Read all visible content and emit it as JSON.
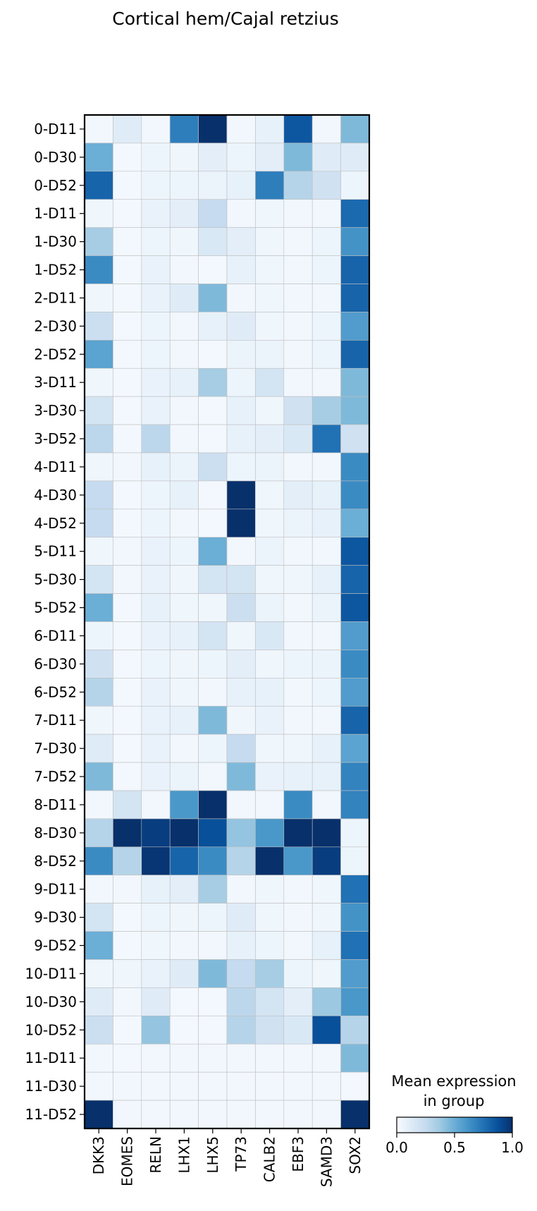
{
  "chart_data": {
    "type": "heatmap",
    "title": "Cortical hem/Cajal retzius",
    "columns": [
      "DKK3",
      "EOMES",
      "RELN",
      "LHX1",
      "LHX5",
      "TP73",
      "CALB2",
      "EBF3",
      "SAMD3",
      "SOX2"
    ],
    "rows": [
      "0-D11",
      "0-D30",
      "0-D52",
      "1-D11",
      "1-D30",
      "1-D52",
      "2-D11",
      "2-D30",
      "2-D52",
      "3-D11",
      "3-D30",
      "3-D52",
      "4-D11",
      "4-D30",
      "4-D52",
      "5-D11",
      "5-D30",
      "5-D52",
      "6-D11",
      "6-D30",
      "6-D52",
      "7-D11",
      "7-D30",
      "7-D52",
      "8-D11",
      "8-D30",
      "8-D52",
      "9-D11",
      "9-D30",
      "9-D52",
      "10-D11",
      "10-D30",
      "10-D52",
      "11-D11",
      "11-D30",
      "11-D52"
    ],
    "values": [
      [
        0.03,
        0.12,
        0.03,
        0.7,
        1.0,
        0.03,
        0.08,
        0.85,
        0.03,
        0.45
      ],
      [
        0.5,
        0.02,
        0.05,
        0.04,
        0.1,
        0.05,
        0.1,
        0.45,
        0.12,
        0.12
      ],
      [
        0.8,
        0.02,
        0.05,
        0.05,
        0.06,
        0.08,
        0.7,
        0.3,
        0.2,
        0.05
      ],
      [
        0.04,
        0.02,
        0.07,
        0.1,
        0.25,
        0.03,
        0.04,
        0.03,
        0.03,
        0.78
      ],
      [
        0.35,
        0.02,
        0.05,
        0.04,
        0.15,
        0.1,
        0.04,
        0.03,
        0.05,
        0.62
      ],
      [
        0.65,
        0.02,
        0.07,
        0.03,
        0.02,
        0.08,
        0.04,
        0.03,
        0.05,
        0.8
      ],
      [
        0.04,
        0.02,
        0.07,
        0.12,
        0.45,
        0.03,
        0.04,
        0.03,
        0.03,
        0.8
      ],
      [
        0.22,
        0.02,
        0.05,
        0.03,
        0.08,
        0.12,
        0.04,
        0.03,
        0.05,
        0.58
      ],
      [
        0.55,
        0.02,
        0.05,
        0.03,
        0.02,
        0.06,
        0.06,
        0.03,
        0.05,
        0.8
      ],
      [
        0.04,
        0.02,
        0.07,
        0.08,
        0.35,
        0.05,
        0.18,
        0.03,
        0.03,
        0.45
      ],
      [
        0.18,
        0.02,
        0.07,
        0.03,
        0.02,
        0.08,
        0.04,
        0.2,
        0.35,
        0.45
      ],
      [
        0.28,
        0.02,
        0.28,
        0.03,
        0.02,
        0.08,
        0.1,
        0.15,
        0.75,
        0.2
      ],
      [
        0.04,
        0.03,
        0.08,
        0.06,
        0.22,
        0.05,
        0.06,
        0.03,
        0.03,
        0.65
      ],
      [
        0.25,
        0.02,
        0.05,
        0.08,
        0.02,
        1.0,
        0.04,
        0.1,
        0.08,
        0.65
      ],
      [
        0.25,
        0.02,
        0.05,
        0.03,
        0.02,
        1.0,
        0.04,
        0.06,
        0.08,
        0.5
      ],
      [
        0.04,
        0.03,
        0.07,
        0.05,
        0.5,
        0.03,
        0.06,
        0.03,
        0.03,
        0.85
      ],
      [
        0.18,
        0.03,
        0.07,
        0.04,
        0.18,
        0.18,
        0.04,
        0.04,
        0.08,
        0.8
      ],
      [
        0.5,
        0.02,
        0.08,
        0.04,
        0.04,
        0.22,
        0.06,
        0.03,
        0.06,
        0.85
      ],
      [
        0.05,
        0.02,
        0.07,
        0.08,
        0.18,
        0.04,
        0.15,
        0.03,
        0.03,
        0.58
      ],
      [
        0.2,
        0.02,
        0.05,
        0.04,
        0.05,
        0.1,
        0.04,
        0.05,
        0.06,
        0.65
      ],
      [
        0.3,
        0.02,
        0.07,
        0.04,
        0.03,
        0.08,
        0.08,
        0.03,
        0.05,
        0.58
      ],
      [
        0.04,
        0.02,
        0.07,
        0.08,
        0.45,
        0.04,
        0.07,
        0.03,
        0.03,
        0.8
      ],
      [
        0.12,
        0.02,
        0.07,
        0.03,
        0.05,
        0.25,
        0.04,
        0.04,
        0.08,
        0.55
      ],
      [
        0.45,
        0.02,
        0.07,
        0.06,
        0.03,
        0.45,
        0.07,
        0.08,
        0.08,
        0.68
      ],
      [
        0.03,
        0.18,
        0.03,
        0.6,
        1.0,
        0.03,
        0.03,
        0.65,
        0.03,
        0.68
      ],
      [
        0.3,
        1.0,
        0.95,
        1.0,
        0.88,
        0.4,
        0.6,
        1.0,
        1.0,
        0.05
      ],
      [
        0.65,
        0.3,
        0.98,
        0.8,
        0.65,
        0.3,
        1.0,
        0.6,
        0.95,
        0.05
      ],
      [
        0.03,
        0.03,
        0.08,
        0.1,
        0.35,
        0.03,
        0.04,
        0.03,
        0.04,
        0.75
      ],
      [
        0.18,
        0.02,
        0.05,
        0.04,
        0.05,
        0.12,
        0.04,
        0.03,
        0.04,
        0.62
      ],
      [
        0.5,
        0.02,
        0.04,
        0.03,
        0.03,
        0.08,
        0.05,
        0.03,
        0.08,
        0.75
      ],
      [
        0.04,
        0.04,
        0.07,
        0.12,
        0.45,
        0.25,
        0.35,
        0.05,
        0.04,
        0.58
      ],
      [
        0.12,
        0.03,
        0.12,
        0.02,
        0.02,
        0.28,
        0.18,
        0.1,
        0.38,
        0.6
      ],
      [
        0.22,
        0.02,
        0.4,
        0.02,
        0.02,
        0.3,
        0.2,
        0.15,
        0.88,
        0.3
      ],
      [
        0.03,
        0.02,
        0.03,
        0.03,
        0.03,
        0.03,
        0.03,
        0.03,
        0.03,
        0.45
      ],
      [
        0.03,
        0.03,
        0.03,
        0.03,
        0.03,
        0.03,
        0.03,
        0.03,
        0.03,
        0.02
      ],
      [
        1.0,
        0.03,
        0.03,
        0.03,
        0.03,
        0.03,
        0.03,
        0.03,
        0.03,
        1.0
      ]
    ],
    "vmin": 0.0,
    "vmax": 1.0,
    "colormap": "Blues",
    "colorbar": {
      "title_line1": "Mean expression",
      "title_line2": "in group",
      "ticks": [
        "0.0",
        "0.5",
        "1.0"
      ]
    }
  }
}
